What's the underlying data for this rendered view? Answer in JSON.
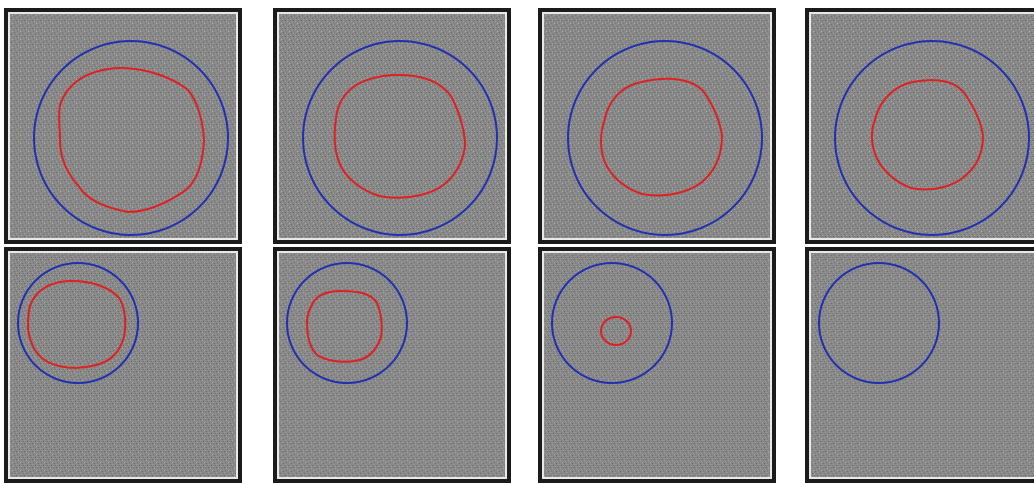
{
  "figure": {
    "rows": 2,
    "cols": 4,
    "background": "#888888",
    "noise_dark": "#5e5e5e",
    "noise_light": "#b3b3b3",
    "panel_border": "#1b1b1b",
    "reference_circle_color": "#2030b0",
    "segmentation_contour_color": "#e02020"
  },
  "panels": [
    {
      "id": "top-1",
      "has_contour": true
    },
    {
      "id": "top-2",
      "has_contour": true
    },
    {
      "id": "top-3",
      "has_contour": true
    },
    {
      "id": "top-4",
      "has_contour": true
    },
    {
      "id": "bottom-1",
      "has_contour": true
    },
    {
      "id": "bottom-2",
      "has_contour": true
    },
    {
      "id": "bottom-3",
      "has_contour": true
    },
    {
      "id": "bottom-4",
      "has_contour": false
    }
  ]
}
